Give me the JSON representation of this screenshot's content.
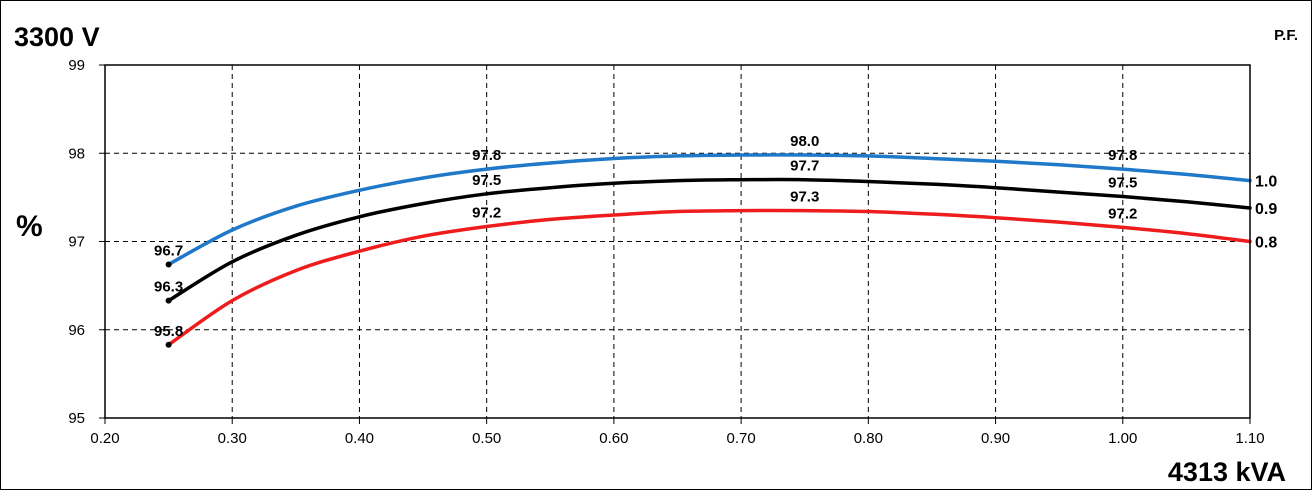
{
  "chart_data": {
    "type": "line",
    "title": "3300 V",
    "xlabel": "4313 kVA",
    "ylabel": "%",
    "legend_title": "P.F.",
    "xlim": [
      0.2,
      1.1
    ],
    "ylim": [
      95,
      99
    ],
    "x_ticks": [
      "0.20",
      "0.30",
      "0.40",
      "0.50",
      "0.60",
      "0.70",
      "0.80",
      "0.90",
      "1.00",
      "1.10"
    ],
    "y_ticks": [
      "95",
      "96",
      "97",
      "98",
      "99"
    ],
    "grid": true,
    "legend_position": "right",
    "x": [
      0.25,
      0.3,
      0.35,
      0.4,
      0.45,
      0.5,
      0.55,
      0.6,
      0.65,
      0.7,
      0.75,
      0.8,
      0.85,
      0.9,
      0.95,
      1.0,
      1.05,
      1.1
    ],
    "series": [
      {
        "name": "1.0",
        "color": "#1f78c8",
        "values": [
          96.74,
          97.13,
          97.4,
          97.58,
          97.72,
          97.82,
          97.89,
          97.94,
          97.97,
          97.98,
          97.98,
          97.97,
          97.94,
          97.91,
          97.87,
          97.82,
          97.76,
          97.69
        ],
        "labels": [
          {
            "x": 0.25,
            "text": "96.7"
          },
          {
            "x": 0.5,
            "text": "97.8"
          },
          {
            "x": 0.75,
            "text": "98.0"
          },
          {
            "x": 1.0,
            "text": "97.8"
          }
        ]
      },
      {
        "name": "0.9",
        "color": "#000000",
        "values": [
          96.33,
          96.77,
          97.07,
          97.28,
          97.43,
          97.54,
          97.61,
          97.66,
          97.69,
          97.7,
          97.7,
          97.68,
          97.65,
          97.61,
          97.56,
          97.51,
          97.45,
          97.38
        ],
        "labels": [
          {
            "x": 0.25,
            "text": "96.3"
          },
          {
            "x": 0.5,
            "text": "97.5"
          },
          {
            "x": 0.75,
            "text": "97.7"
          },
          {
            "x": 1.0,
            "text": "97.5"
          }
        ]
      },
      {
        "name": "0.8",
        "color": "#ee1c1c",
        "values": [
          95.83,
          96.33,
          96.67,
          96.89,
          97.06,
          97.17,
          97.25,
          97.3,
          97.34,
          97.35,
          97.35,
          97.34,
          97.31,
          97.27,
          97.22,
          97.16,
          97.09,
          97.0
        ],
        "labels": [
          {
            "x": 0.25,
            "text": "95.8"
          },
          {
            "x": 0.5,
            "text": "97.2"
          },
          {
            "x": 0.75,
            "text": "97.3"
          },
          {
            "x": 1.0,
            "text": "97.2"
          }
        ]
      }
    ]
  }
}
